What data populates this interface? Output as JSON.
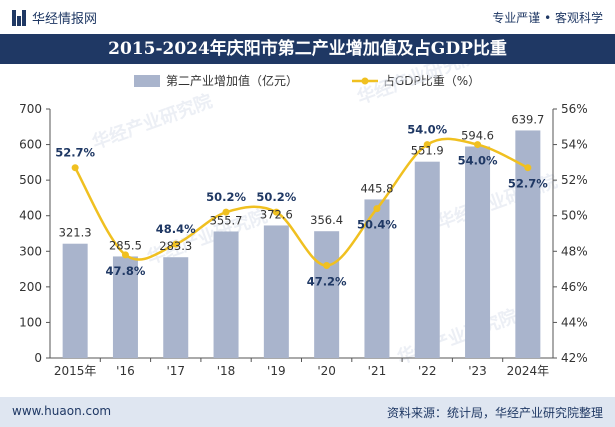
{
  "header": {
    "brand": "华经情报网",
    "tagline": "专业严谨 • 客观科学"
  },
  "footer": {
    "url": "www.huaon.com",
    "source": "资料来源：统计局，华经产业研究院整理"
  },
  "watermark": "华经产业研究院",
  "colors": {
    "bar": "#a9b4cc",
    "line": "#f0c020",
    "title_bg": "#1f3864"
  },
  "chart_data": {
    "type": "bar",
    "title": "2015-2024年庆阳市第二产业增加值及占GDP比重",
    "categories": [
      "2015年",
      "'16",
      "'17",
      "'18",
      "'19",
      "'20",
      "'21",
      "'22",
      "'23",
      "2024年"
    ],
    "series": [
      {
        "name": "第二产业增加值（亿元）",
        "type": "bar",
        "axis": "left",
        "values": [
          321.3,
          285.5,
          283.3,
          355.7,
          372.6,
          356.4,
          445.8,
          551.9,
          594.6,
          639.7
        ],
        "labels": [
          "321.3",
          "285.5",
          "283.3",
          "355.7",
          "372.6",
          "356.4",
          "445.8",
          "551.9",
          "594.6",
          "639.7"
        ]
      },
      {
        "name": "占GDP比重（%）",
        "type": "line",
        "axis": "right",
        "values": [
          52.7,
          47.8,
          48.4,
          50.2,
          50.2,
          47.2,
          50.4,
          54.0,
          54.0,
          52.7
        ],
        "labels": [
          "52.7%",
          "47.8%",
          "48.4%",
          "50.2%",
          "50.2%",
          "47.2%",
          "50.4%",
          "54.0%",
          "54.0%",
          "52.7%"
        ]
      }
    ],
    "y_left": {
      "min": 0,
      "max": 700,
      "ticks": [
        "0",
        "100",
        "200",
        "300",
        "400",
        "500",
        "600",
        "700"
      ]
    },
    "y_right": {
      "min": 42,
      "max": 56,
      "ticks": [
        "42%",
        "44%",
        "46%",
        "48%",
        "50%",
        "52%",
        "54%",
        "56%"
      ]
    },
    "legend_position": "top",
    "grid": false
  }
}
